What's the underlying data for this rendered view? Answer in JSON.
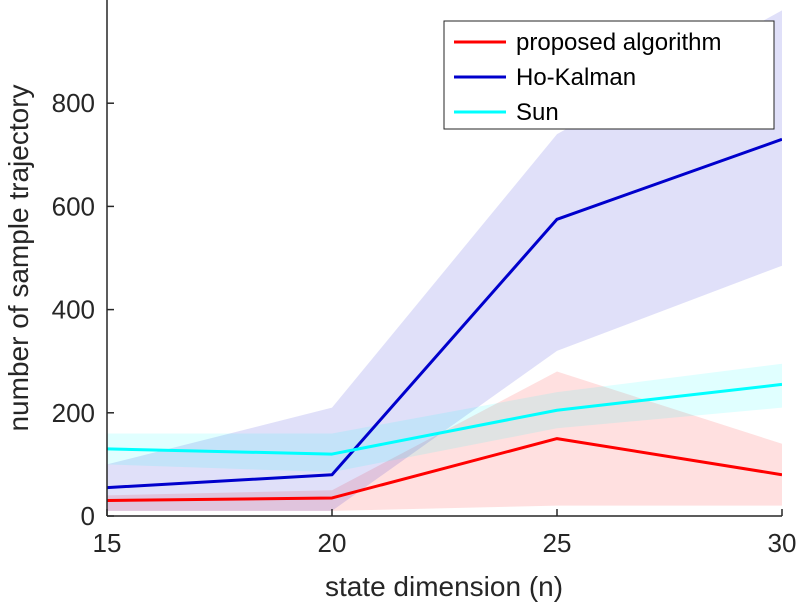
{
  "chart_data": {
    "type": "line",
    "title": "",
    "xlabel": "state dimension (n)",
    "ylabel": "number of sample trajectory",
    "xlim": [
      15,
      30
    ],
    "ylim": [
      0,
      1000
    ],
    "xticks": [
      15,
      20,
      25,
      30
    ],
    "yticks": [
      0,
      200,
      400,
      600,
      800
    ],
    "grid": false,
    "legend_position": "top-right",
    "series": [
      {
        "name": "proposed algorithm",
        "color": "#ff0000",
        "x": [
          15,
          20,
          25,
          30
        ],
        "values": [
          30,
          35,
          150,
          80
        ],
        "band_upper": [
          40,
          50,
          280,
          140
        ],
        "band_lower": [
          10,
          10,
          20,
          20
        ]
      },
      {
        "name": "Ho-Kalman",
        "color": "#0000cc",
        "x": [
          15,
          20,
          25,
          30
        ],
        "values": [
          55,
          80,
          575,
          730
        ],
        "band_upper": [
          100,
          210,
          740,
          980
        ],
        "band_lower": [
          10,
          10,
          320,
          485
        ]
      },
      {
        "name": "Sun",
        "color": "#00ffff",
        "x": [
          15,
          20,
          25,
          30
        ],
        "values": [
          130,
          120,
          205,
          255
        ],
        "band_upper": [
          160,
          160,
          240,
          295
        ],
        "band_lower": [
          100,
          85,
          170,
          210
        ]
      }
    ]
  }
}
